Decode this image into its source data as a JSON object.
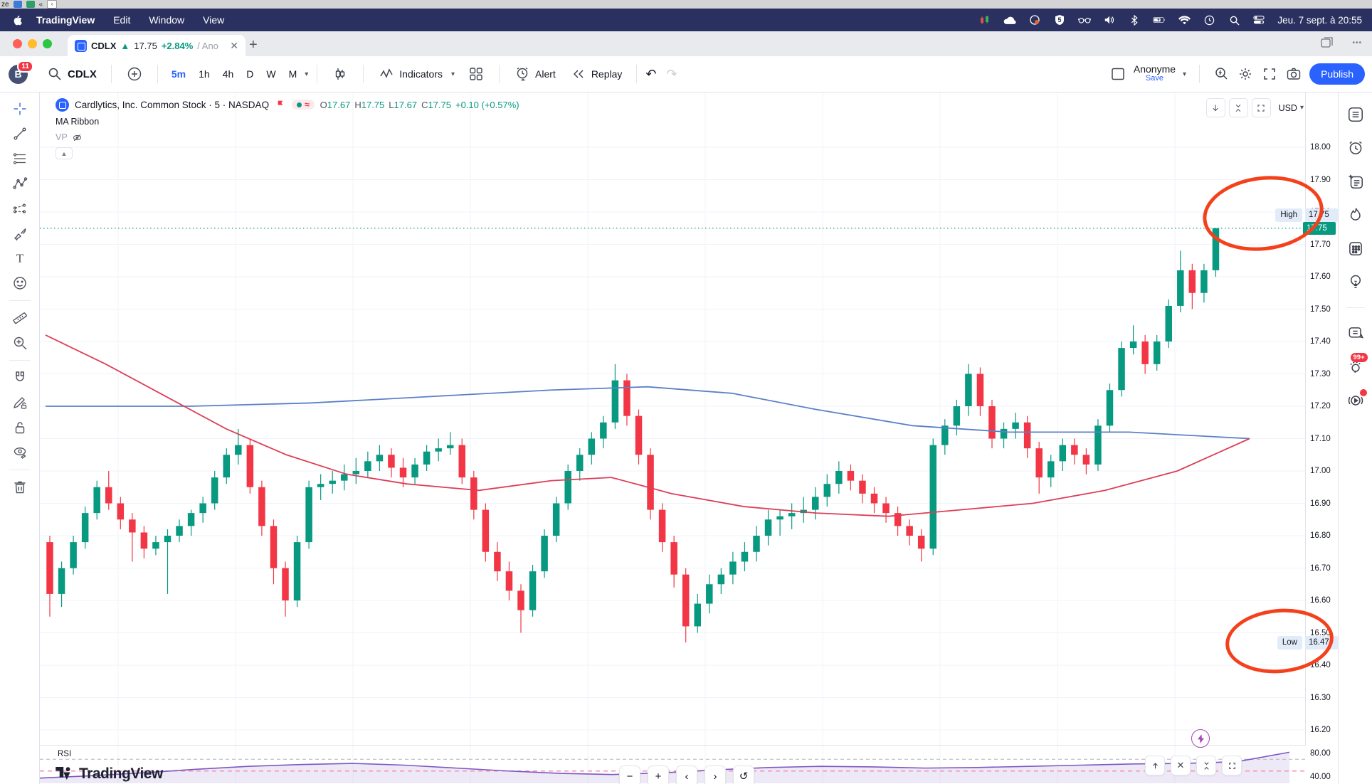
{
  "window": {
    "top_strip_label": "ze",
    "menu_items": [
      "TradingView",
      "Edit",
      "Window",
      "View"
    ],
    "clock": "Jeu. 7 sept. à 20:55"
  },
  "tab": {
    "symbol": "CDLX",
    "arrow": "▲",
    "price": "17.75",
    "change_pct": "+2.84%",
    "suffix": "/ Ano",
    "close": "✕",
    "new_tab": "+",
    "overflow_menu": "•••"
  },
  "toolbar": {
    "avatar_letter": "B",
    "notifications_badge": "11",
    "symbol": "CDLX",
    "timeframes": [
      "5m",
      "1h",
      "4h",
      "D",
      "W",
      "M"
    ],
    "active_timeframe": "5m",
    "indicators_label": "Indicators",
    "alert_label": "Alert",
    "replay_label": "Replay",
    "undo_glyph": "↶",
    "redo_glyph": "↷",
    "account_name": "Anonyme",
    "save_label": "Save",
    "publish_label": "Publish",
    "currency": "USD"
  },
  "legend": {
    "title": "Cardlytics, Inc. Common Stock · 5 · NASDAQ",
    "market_status": "≈",
    "ohlc": {
      "o_label": "O",
      "o": "17.67",
      "h_label": "H",
      "h": "17.75",
      "l_label": "L",
      "l": "17.67",
      "c_label": "C",
      "c": "17.75",
      "change": "+0.10 (+0.57%)"
    },
    "indicator1": "MA Ribbon",
    "indicator2": "VP"
  },
  "annotations": {
    "high_label": "High",
    "high_value": "17.75",
    "low_label": "Low",
    "low_value": "16.47",
    "current_price_label": "17.75"
  },
  "rsi_pane": {
    "label": "RSI",
    "ticks": [
      "80.00",
      "40.00"
    ]
  },
  "footer_logo": "TradingView",
  "colors": {
    "up": "#089981",
    "down": "#f23645",
    "accent": "#2962ff",
    "ma_fast": "#5b80c7",
    "ma_slow": "#dd3e56",
    "rsi_line": "#7e57c2",
    "rsi_fill": "rgba(126,87,194,0.13)",
    "rsi_mid": "#f48fb1",
    "rsi_band": "#b2b5be",
    "grid": "#f0f3fa",
    "annotation_red": "#f4411c"
  },
  "chart_data": {
    "type": "candlestick",
    "title": "Cardlytics, Inc. Common Stock",
    "exchange": "NASDAQ",
    "interval": "5",
    "currency": "USD",
    "y_min": 16.2,
    "y_max": 18.0,
    "y_ticks": [
      18.0,
      17.9,
      17.8,
      17.7,
      17.6,
      17.5,
      17.4,
      17.3,
      17.2,
      17.1,
      17.0,
      16.9,
      16.8,
      16.7,
      16.6,
      16.5,
      16.4,
      16.3,
      16.2
    ],
    "current_price": 17.75,
    "session_high": 17.75,
    "session_low": 16.47,
    "candles": [
      [
        16.78,
        16.8,
        16.55,
        16.62
      ],
      [
        16.62,
        16.72,
        16.58,
        16.7
      ],
      [
        16.7,
        16.8,
        16.68,
        16.78
      ],
      [
        16.78,
        16.89,
        16.76,
        16.87
      ],
      [
        16.87,
        16.97,
        16.85,
        16.95
      ],
      [
        16.95,
        17.0,
        16.88,
        16.9
      ],
      [
        16.9,
        16.92,
        16.82,
        16.85
      ],
      [
        16.85,
        16.87,
        16.72,
        16.81
      ],
      [
        16.81,
        16.83,
        16.73,
        16.76
      ],
      [
        16.76,
        16.8,
        16.74,
        16.78
      ],
      [
        16.78,
        16.82,
        16.62,
        16.8
      ],
      [
        16.8,
        16.85,
        16.78,
        16.83
      ],
      [
        16.83,
        16.88,
        16.8,
        16.87
      ],
      [
        16.87,
        16.92,
        16.84,
        16.9
      ],
      [
        16.9,
        17.0,
        16.88,
        16.98
      ],
      [
        16.98,
        17.07,
        16.96,
        17.05
      ],
      [
        17.05,
        17.13,
        17.02,
        17.08
      ],
      [
        17.08,
        17.1,
        16.93,
        16.95
      ],
      [
        16.95,
        16.97,
        16.8,
        16.83
      ],
      [
        16.83,
        16.85,
        16.65,
        16.7
      ],
      [
        16.7,
        16.72,
        16.55,
        16.6
      ],
      [
        16.6,
        16.8,
        16.58,
        16.78
      ],
      [
        16.78,
        16.97,
        16.76,
        16.95
      ],
      [
        16.95,
        16.99,
        16.91,
        16.96
      ],
      [
        16.96,
        17.0,
        16.93,
        16.97
      ],
      [
        16.97,
        17.02,
        16.94,
        16.99
      ],
      [
        16.99,
        17.04,
        16.96,
        17.0
      ],
      [
        17.0,
        17.06,
        16.98,
        17.03
      ],
      [
        17.03,
        17.08,
        17.0,
        17.05
      ],
      [
        17.05,
        17.07,
        16.98,
        17.01
      ],
      [
        17.01,
        17.04,
        16.95,
        16.98
      ],
      [
        16.98,
        17.04,
        16.96,
        17.02
      ],
      [
        17.02,
        17.08,
        17.0,
        17.06
      ],
      [
        17.06,
        17.1,
        17.03,
        17.07
      ],
      [
        17.07,
        17.12,
        17.05,
        17.08
      ],
      [
        17.08,
        17.1,
        16.96,
        16.98
      ],
      [
        16.98,
        17.0,
        16.85,
        16.88
      ],
      [
        16.88,
        16.9,
        16.72,
        16.75
      ],
      [
        16.75,
        16.78,
        16.66,
        16.69
      ],
      [
        16.69,
        16.72,
        16.6,
        16.63
      ],
      [
        16.63,
        16.65,
        16.5,
        16.57
      ],
      [
        16.57,
        16.71,
        16.55,
        16.69
      ],
      [
        16.69,
        16.82,
        16.67,
        16.8
      ],
      [
        16.8,
        16.92,
        16.78,
        16.9
      ],
      [
        16.9,
        17.02,
        16.88,
        17.0
      ],
      [
        17.0,
        17.07,
        16.97,
        17.05
      ],
      [
        17.05,
        17.12,
        17.02,
        17.1
      ],
      [
        17.1,
        17.17,
        17.07,
        17.15
      ],
      [
        17.15,
        17.33,
        17.13,
        17.28
      ],
      [
        17.28,
        17.3,
        17.14,
        17.17
      ],
      [
        17.17,
        17.19,
        17.02,
        17.05
      ],
      [
        17.05,
        17.07,
        16.85,
        16.88
      ],
      [
        16.88,
        16.9,
        16.75,
        16.78
      ],
      [
        16.78,
        16.8,
        16.64,
        16.68
      ],
      [
        16.68,
        16.7,
        16.47,
        16.52
      ],
      [
        16.52,
        16.62,
        16.5,
        16.59
      ],
      [
        16.59,
        16.68,
        16.56,
        16.65
      ],
      [
        16.65,
        16.7,
        16.62,
        16.68
      ],
      [
        16.68,
        16.75,
        16.65,
        16.72
      ],
      [
        16.72,
        16.78,
        16.69,
        16.75
      ],
      [
        16.75,
        16.83,
        16.72,
        16.8
      ],
      [
        16.8,
        16.88,
        16.77,
        16.85
      ],
      [
        16.85,
        16.88,
        16.8,
        16.86
      ],
      [
        16.86,
        16.9,
        16.82,
        16.87
      ],
      [
        16.87,
        16.92,
        16.84,
        16.88
      ],
      [
        16.88,
        16.95,
        16.85,
        16.92
      ],
      [
        16.92,
        16.99,
        16.89,
        16.96
      ],
      [
        16.96,
        17.03,
        16.93,
        17.0
      ],
      [
        17.0,
        17.02,
        16.94,
        16.97
      ],
      [
        16.97,
        16.99,
        16.9,
        16.93
      ],
      [
        16.93,
        16.95,
        16.87,
        16.9
      ],
      [
        16.9,
        16.92,
        16.84,
        16.87
      ],
      [
        16.87,
        16.89,
        16.8,
        16.83
      ],
      [
        16.83,
        16.85,
        16.77,
        16.8
      ],
      [
        16.8,
        16.82,
        16.72,
        16.76
      ],
      [
        16.76,
        17.1,
        16.74,
        17.08
      ],
      [
        17.08,
        17.16,
        17.05,
        17.14
      ],
      [
        17.14,
        17.22,
        17.11,
        17.2
      ],
      [
        17.2,
        17.33,
        17.17,
        17.3
      ],
      [
        17.3,
        17.32,
        17.17,
        17.2
      ],
      [
        17.2,
        17.22,
        17.07,
        17.1
      ],
      [
        17.1,
        17.15,
        17.07,
        17.13
      ],
      [
        17.13,
        17.18,
        17.1,
        17.15
      ],
      [
        17.15,
        17.17,
        17.04,
        17.07
      ],
      [
        17.07,
        17.09,
        16.93,
        16.98
      ],
      [
        16.98,
        17.05,
        16.95,
        17.03
      ],
      [
        17.03,
        17.1,
        17.0,
        17.08
      ],
      [
        17.08,
        17.1,
        17.02,
        17.05
      ],
      [
        17.05,
        17.07,
        16.99,
        17.02
      ],
      [
        17.02,
        17.16,
        17.0,
        17.14
      ],
      [
        17.14,
        17.27,
        17.12,
        17.25
      ],
      [
        17.25,
        17.4,
        17.23,
        17.38
      ],
      [
        17.38,
        17.45,
        17.36,
        17.4
      ],
      [
        17.4,
        17.42,
        17.3,
        17.33
      ],
      [
        17.33,
        17.42,
        17.31,
        17.4
      ],
      [
        17.4,
        17.53,
        17.38,
        17.51
      ],
      [
        17.51,
        17.68,
        17.49,
        17.62
      ],
      [
        17.62,
        17.64,
        17.5,
        17.55
      ],
      [
        17.55,
        17.64,
        17.52,
        17.62
      ],
      [
        17.62,
        17.75,
        17.6,
        17.75
      ]
    ],
    "ma_fast": {
      "name": "MA fast (blue)",
      "points": [
        [
          0,
          17.2
        ],
        [
          0.12,
          17.2
        ],
        [
          0.22,
          17.21
        ],
        [
          0.32,
          17.23
        ],
        [
          0.42,
          17.25
        ],
        [
          0.5,
          17.26
        ],
        [
          0.57,
          17.24
        ],
        [
          0.64,
          17.19
        ],
        [
          0.72,
          17.14
        ],
        [
          0.8,
          17.12
        ],
        [
          0.9,
          17.12
        ],
        [
          1,
          17.1
        ]
      ]
    },
    "ma_slow": {
      "name": "MA slow (red)",
      "points": [
        [
          0,
          17.42
        ],
        [
          0.05,
          17.33
        ],
        [
          0.1,
          17.23
        ],
        [
          0.15,
          17.13
        ],
        [
          0.2,
          17.05
        ],
        [
          0.25,
          16.99
        ],
        [
          0.3,
          16.96
        ],
        [
          0.36,
          16.94
        ],
        [
          0.42,
          16.97
        ],
        [
          0.47,
          16.98
        ],
        [
          0.52,
          16.93
        ],
        [
          0.58,
          16.89
        ],
        [
          0.64,
          16.87
        ],
        [
          0.7,
          16.86
        ],
        [
          0.76,
          16.88
        ],
        [
          0.82,
          16.9
        ],
        [
          0.88,
          16.94
        ],
        [
          0.94,
          17.0
        ],
        [
          1,
          17.1
        ]
      ]
    },
    "rsi": {
      "values": [
        38,
        42,
        47,
        53,
        58,
        61,
        63,
        60,
        55,
        50,
        46,
        44,
        47,
        52,
        56,
        58,
        57,
        55,
        56,
        58,
        60,
        62,
        63,
        66,
        82
      ],
      "upper_band": 70,
      "mid_band": 50,
      "axis_ticks": [
        80,
        40
      ]
    }
  }
}
